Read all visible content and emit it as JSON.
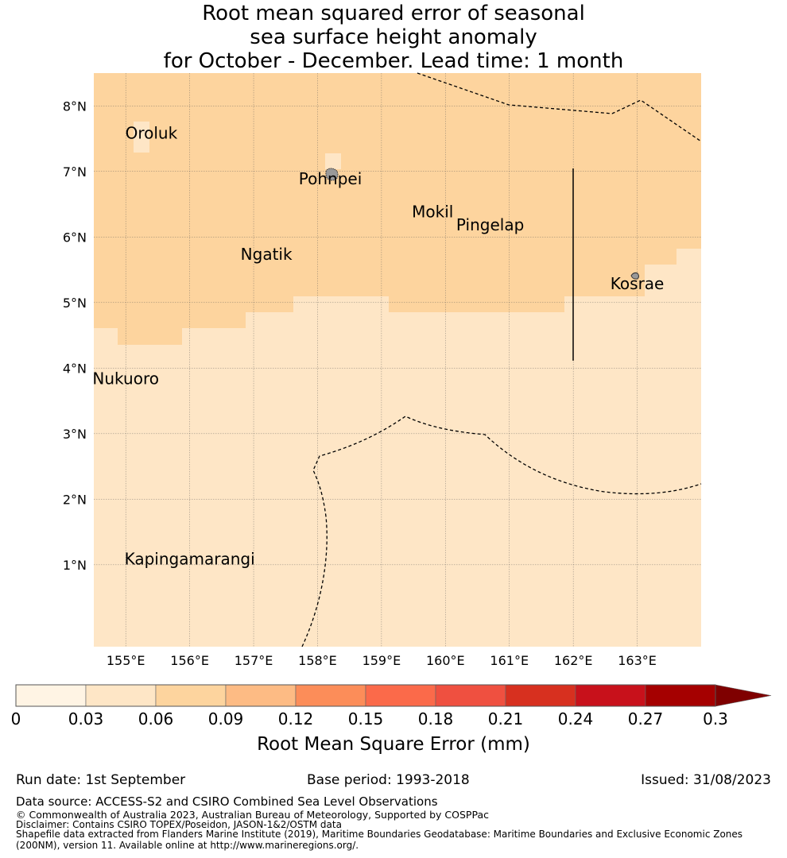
{
  "title": {
    "line1": "Root mean squared error of seasonal",
    "line2": "sea surface height anomaly",
    "line3": "for October - December. Lead time: 1 month"
  },
  "map": {
    "lon_range": [
      154.5,
      164.0
    ],
    "lat_range": [
      -0.25,
      8.5
    ],
    "lon_ticks": [
      "155°E",
      "156°E",
      "157°E",
      "158°E",
      "159°E",
      "160°E",
      "161°E",
      "162°E",
      "163°E"
    ],
    "lat_ticks": [
      "1°N",
      "2°N",
      "3°N",
      "4°N",
      "5°N",
      "6°N",
      "7°N",
      "8°N"
    ],
    "colors": {
      "band_003_006": "#fee6c6",
      "band_006_009": "#fdd49e",
      "land": "#999999"
    },
    "places": [
      {
        "name": "Oroluk",
        "lon": 155.4,
        "lat": 7.6
      },
      {
        "name": "Pohnpei",
        "lon": 158.2,
        "lat": 6.9
      },
      {
        "name": "Mokil",
        "lon": 159.8,
        "lat": 6.4
      },
      {
        "name": "Pingelap",
        "lon": 160.7,
        "lat": 6.2
      },
      {
        "name": "Ngatik",
        "lon": 157.2,
        "lat": 5.75
      },
      {
        "name": "Kosrae",
        "lon": 163.0,
        "lat": 5.3
      },
      {
        "name": "Nukuoro",
        "lon": 155.0,
        "lat": 3.85
      },
      {
        "name": "Kapingamarangi",
        "lon": 156.0,
        "lat": 1.1
      }
    ]
  },
  "colorbar": {
    "label": "Root Mean Square Error (mm)",
    "ticks": [
      "0",
      "0.03",
      "0.06",
      "0.09",
      "0.12",
      "0.15",
      "0.18",
      "0.21",
      "0.24",
      "0.27",
      "0.3"
    ],
    "colors": [
      "#fff4e4",
      "#fee6c6",
      "#fdd49e",
      "#fdbb84",
      "#fc8d59",
      "#fb6a4a",
      "#ef5040",
      "#d7301f",
      "#c8111b",
      "#a50000"
    ],
    "extend_color": "#7f0000"
  },
  "footer": {
    "run_date": "Run date: 1st September",
    "base_period": "Base period: 1993-2018",
    "issued": "Issued: 31/08/2023",
    "data_source": "Data source: ACCESS-S2 and CSIRO Combined Sea Level Observations",
    "copyright": "© Commonwealth of Australia 2023, Australian Bureau of Meteorology, Supported by COSPPac",
    "disclaimer": "Disclaimer: Contains CSIRO TOPEX/Poseidon, JASON-1&2/OSTM data",
    "shapefile1": "Shapefile data extracted from Flanders Marine Institute (2019), Maritime Boundaries Geodatabase: Maritime Boundaries and Exclusive Economic Zones",
    "shapefile2": "(200NM), version 11. Available online at http://www.marineregions.org/."
  }
}
